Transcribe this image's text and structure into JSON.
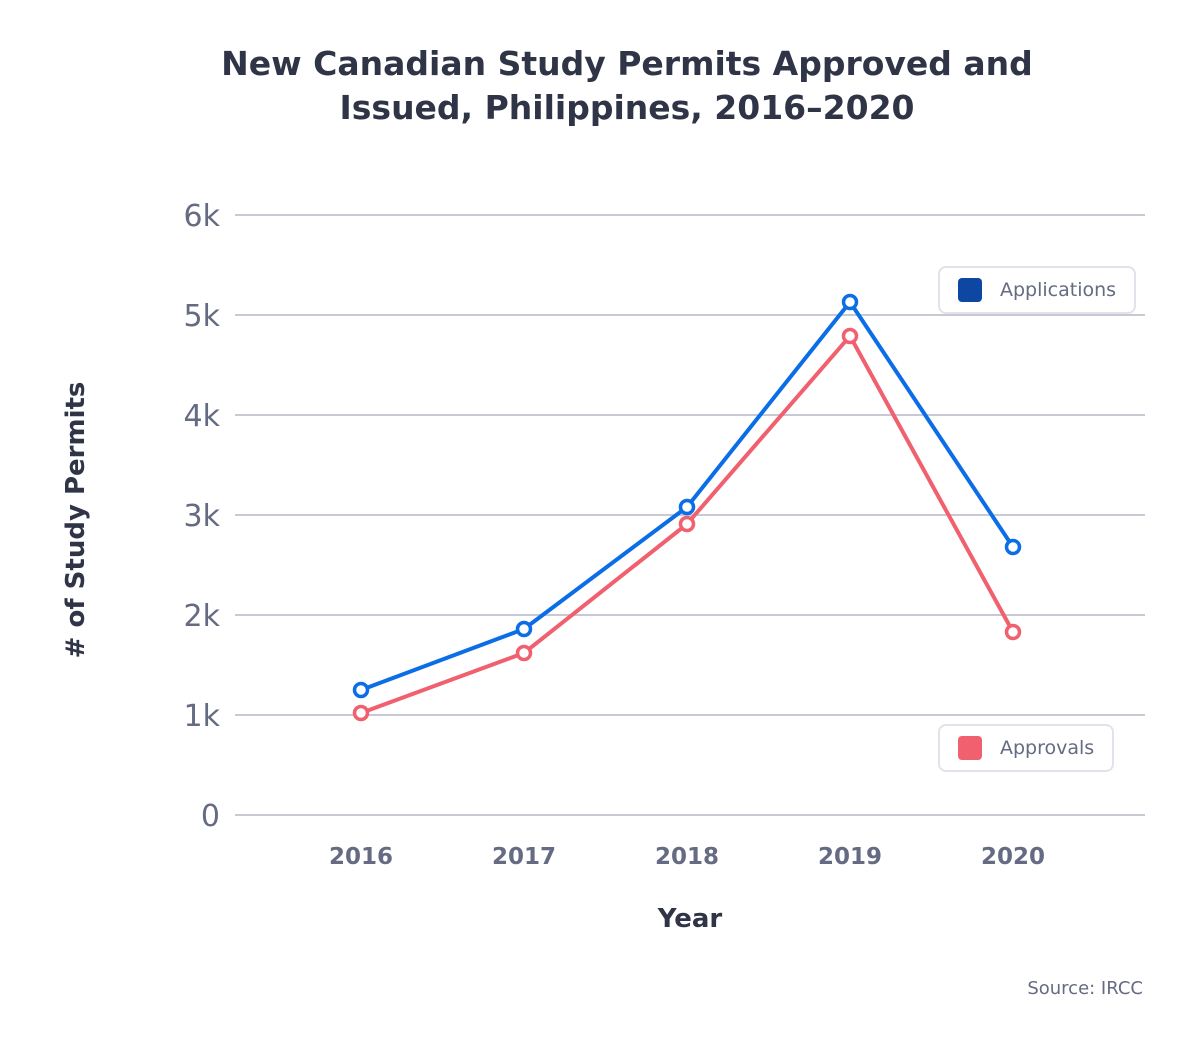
{
  "chart_data": {
    "type": "line",
    "title_line1": "New Canadian Study Permits Approved and",
    "title_line2": "Issued, Philippines, 2016–2020",
    "xlabel": "Year",
    "ylabel": "# of Study Permits",
    "categories": [
      "2016",
      "2017",
      "2018",
      "2019",
      "2020"
    ],
    "yticks": [
      "0",
      "1k",
      "2k",
      "3k",
      "4k",
      "5k",
      "6k"
    ],
    "ylim": [
      0,
      6000
    ],
    "grid": true,
    "series": [
      {
        "name": "Applications",
        "color": "#0b6ee6",
        "legend_color": "#0d47a1",
        "values": [
          1250,
          1860,
          3080,
          5130,
          2680
        ]
      },
      {
        "name": "Approvals",
        "color": "#f0606e",
        "legend_color": "#f0606e",
        "values": [
          1020,
          1620,
          2910,
          4790,
          1830
        ]
      }
    ],
    "source": "Source: IRCC"
  }
}
